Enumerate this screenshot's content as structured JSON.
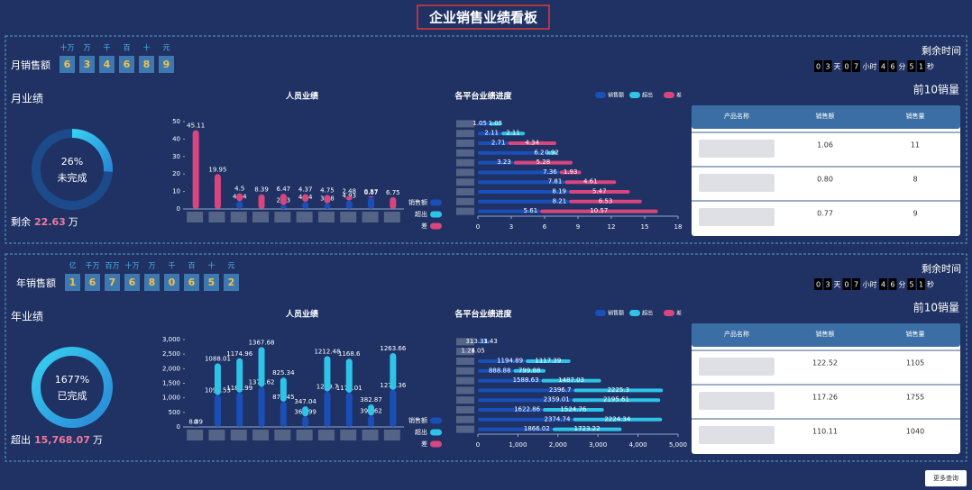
{
  "title": "企业销售业绩看板",
  "button": "更多查询",
  "panels": [
    {
      "sales_label": "月销售额",
      "units": [
        "十万",
        "万",
        "千",
        "百",
        "十",
        "元"
      ],
      "digits": [
        "6",
        "3",
        "4",
        "6",
        "8",
        "9"
      ],
      "countdown_label": "剩余时间",
      "countdown": [
        "0",
        "3",
        "天",
        "0",
        "7",
        "小时",
        "4",
        "6",
        "分",
        "5",
        "1",
        "秒"
      ],
      "summary": {
        "prefix": "剩余",
        "value": "22.63",
        "unit": "万"
      },
      "table_title": "前10销量",
      "table": {
        "header": [
          "产品名称",
          "销售额",
          "销售量"
        ],
        "rows": [
          [
            null,
            "1.06",
            "11"
          ],
          [
            null,
            "0.80",
            "8"
          ],
          [
            null,
            "0.77",
            "9"
          ]
        ]
      }
    },
    {
      "sales_label": "年销售额",
      "units": [
        "亿",
        "千万",
        "百万",
        "十万",
        "万",
        "千",
        "百",
        "十",
        "元"
      ],
      "digits": [
        "1",
        "6",
        "7",
        "6",
        "8",
        "0",
        "6",
        "5",
        "2"
      ],
      "countdown_label": "剩余时间",
      "countdown": [
        "0",
        "3",
        "天",
        "0",
        "7",
        "小时",
        "4",
        "6",
        "分",
        "5",
        "1",
        "秒"
      ],
      "summary": {
        "prefix": "超出",
        "value": "15,768.07",
        "unit": "万"
      },
      "table_title": "前10销量",
      "table": {
        "header": [
          "产品名称",
          "销售额",
          "销售量"
        ],
        "rows": [
          [
            null,
            "122.52",
            "1105"
          ],
          [
            null,
            "117.26",
            "1755"
          ],
          [
            null,
            "110.11",
            "1040"
          ]
        ]
      }
    }
  ],
  "chart_data": [
    {
      "type": "donut",
      "title": "月业绩",
      "values": [
        26
      ],
      "value_labels": [
        "26%"
      ],
      "label": "未完成",
      "color": "#2fb4e6"
    },
    {
      "type": "bar",
      "title": "人员业绩",
      "categories": [
        null,
        null,
        null,
        null,
        null,
        null,
        null,
        null,
        null,
        null
      ],
      "series": [
        {
          "name": "销售额",
          "color": "#1a4fb8",
          "values": [
            0,
            0,
            4.44,
            0,
            2.23,
            4.14,
            3.28,
            4.93,
            6.67,
            0
          ]
        },
        {
          "name": "超出",
          "color": "#2ec3e8",
          "values": [
            null,
            null,
            null,
            null,
            null,
            null,
            null,
            null,
            null,
            null
          ]
        },
        {
          "name": "差",
          "color": "#d9457f",
          "values": [
            45.11,
            19.95,
            4.5,
            8.39,
            6.47,
            4.37,
            4.75,
            2.48,
            0.57,
            6.75
          ]
        }
      ],
      "ylim": [
        0,
        50
      ],
      "yticks": [
        0,
        10,
        20,
        30,
        40,
        50
      ],
      "legend": "right"
    },
    {
      "type": "hbar",
      "title": "各平台业绩进度",
      "categories": [
        null,
        null,
        null,
        null,
        null,
        null,
        null,
        null,
        null,
        null
      ],
      "series": [
        {
          "name": "销售额",
          "color": "#1a4fb8",
          "values": [
            1.05,
            2.11,
            2.71,
            6.2,
            3.23,
            7.36,
            7.81,
            8.19,
            8.21,
            5.61
          ]
        },
        {
          "name": "超出",
          "color": "#2ec3e8",
          "values": [
            1.05,
            2.11,
            null,
            0.92,
            null,
            null,
            null,
            null,
            null,
            null
          ]
        },
        {
          "name": "差",
          "color": "#d9457f",
          "values": [
            null,
            null,
            4.34,
            null,
            5.28,
            1.93,
            4.61,
            5.47,
            6.53,
            10.57
          ]
        }
      ],
      "xlim": [
        0,
        18
      ],
      "xticks": [
        0,
        3,
        6,
        9,
        12,
        15,
        18
      ],
      "legend": "top"
    },
    {
      "type": "donut",
      "title": "年业绩",
      "values": [
        1677
      ],
      "value_labels": [
        "1677%"
      ],
      "label": "已完成",
      "color": "#2fb4e6"
    },
    {
      "type": "bar",
      "title": "人员业绩",
      "categories": [
        null,
        null,
        null,
        null,
        null,
        null,
        null,
        null,
        null,
        null
      ],
      "series": [
        {
          "name": "销售额",
          "color": "#1a4fb8",
          "values": [
            8.89,
            1096.53,
            1182.99,
            1376.62,
            870.45,
            360.99,
            1219.7,
            1176.01,
            391.62,
            1272.36
          ]
        },
        {
          "name": "超出",
          "color": "#2ec3e8",
          "values": [
            0,
            1088.01,
            1174.96,
            1367.68,
            825.34,
            347.04,
            1212.48,
            1168.6,
            382.87,
            1263.66
          ]
        },
        {
          "name": "差",
          "color": "#d9457f",
          "values": [
            null,
            null,
            null,
            null,
            null,
            null,
            null,
            null,
            null,
            null
          ]
        }
      ],
      "ylim": [
        0,
        3000
      ],
      "yticks": [
        0,
        500,
        {
          "value": 1000,
          "label": "1,000"
        },
        {
          "value": 1500,
          "label": "1,500"
        },
        {
          "value": 2000,
          "label": "2,000"
        },
        {
          "value": 2500,
          "label": "2,500"
        },
        {
          "value": 3000,
          "label": "3,000"
        }
      ],
      "legend": "right"
    },
    {
      "type": "hbar",
      "title": "各平台业绩进度",
      "categories": [
        null,
        null,
        null,
        null,
        null,
        null,
        null,
        null,
        null,
        null
      ],
      "series": [
        {
          "name": "销售额",
          "color": "#1a4fb8",
          "values": [
            313.31,
            1.24,
            1194.89,
            888.88,
            1588.63,
            2396.7,
            2359.01,
            1622.86,
            2374.74,
            1866.02
          ]
        },
        {
          "name": "超出",
          "color": "#2ec3e8",
          "values": [
            3.43,
            1.05,
            1117.39,
            799.88,
            1487.03,
            2225.3,
            2195.61,
            1524.76,
            2224.34,
            1723.22
          ]
        },
        {
          "name": "差",
          "color": "#d9457f",
          "values": [
            null,
            null,
            null,
            null,
            null,
            null,
            null,
            null,
            null,
            null
          ]
        }
      ],
      "xlim": [
        0,
        5000
      ],
      "xticks": [
        0,
        {
          "value": 1000,
          "label": "1,000"
        },
        {
          "value": 2000,
          "label": "2,000"
        },
        {
          "value": 3000,
          "label": "3,000"
        },
        {
          "value": 4000,
          "label": "4,000"
        },
        {
          "value": 5000,
          "label": "5,000"
        }
      ],
      "legend": "top"
    }
  ]
}
